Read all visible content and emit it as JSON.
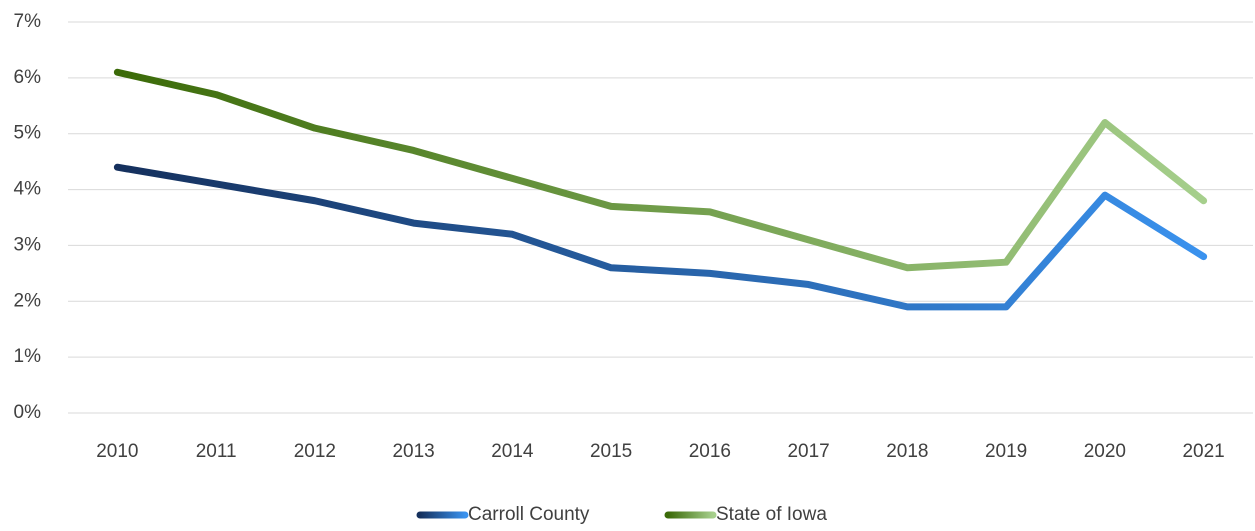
{
  "chart_data": {
    "type": "line",
    "categories": [
      "2010",
      "2011",
      "2012",
      "2013",
      "2014",
      "2015",
      "2016",
      "2017",
      "2018",
      "2019",
      "2020",
      "2021"
    ],
    "series": [
      {
        "name": "Carroll County",
        "color": [
          "#15305d",
          "#3a92ee"
        ],
        "values": [
          4.4,
          4.1,
          3.8,
          3.4,
          3.2,
          2.6,
          2.5,
          2.3,
          1.9,
          1.9,
          3.9,
          2.8
        ]
      },
      {
        "name": "State of Iowa",
        "color": [
          "#3b6a08",
          "#a6cf8c"
        ],
        "values": [
          6.1,
          5.7,
          5.1,
          4.7,
          4.2,
          3.7,
          3.6,
          3.1,
          2.6,
          2.7,
          5.2,
          3.8
        ]
      }
    ],
    "ylim": [
      0,
      7
    ],
    "yticks": [
      {
        "value": 0,
        "label": "0%"
      },
      {
        "value": 1,
        "label": "1%"
      },
      {
        "value": 2,
        "label": "2%"
      },
      {
        "value": 3,
        "label": "3%"
      },
      {
        "value": 4,
        "label": "4%"
      },
      {
        "value": 5,
        "label": "5%"
      },
      {
        "value": 6,
        "label": "6%"
      },
      {
        "value": 7,
        "label": "7%"
      }
    ],
    "grid": true,
    "legend": "bottom"
  }
}
